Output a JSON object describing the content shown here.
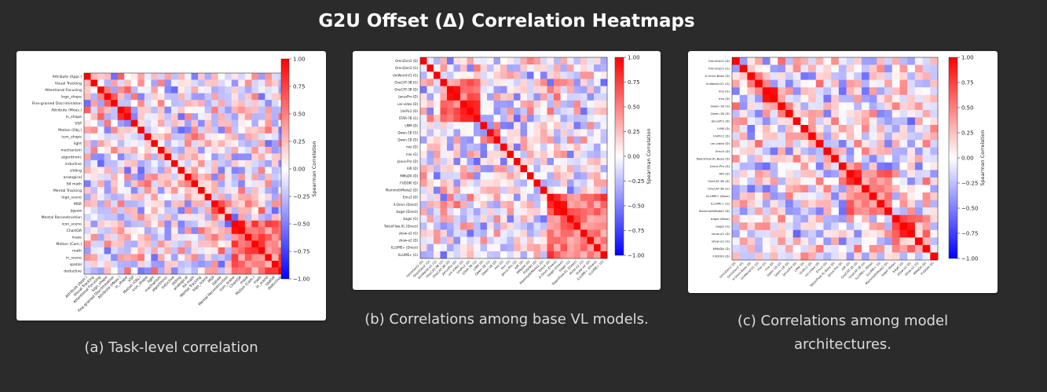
{
  "page": {
    "title": "G2U Offset (Δ) Correlation Heatmaps"
  },
  "colors": {
    "background": "#2b2b2b",
    "card": "#ffffff",
    "title_text": "#ffffff",
    "caption_text": "#dcdcdc",
    "cmap_low": "#0000ff",
    "cmap_mid": "#ffffff",
    "cmap_high": "#ff0000"
  },
  "chart_data": [
    {
      "type": "heatmap",
      "caption": "(a) Task-level correlation",
      "colorbar_label": "Spearman Correlation",
      "colorbar_ticks": [
        "1.00",
        "0.75",
        "0.50",
        "0.25",
        "0.00",
        "−0.25",
        "−0.50",
        "−0.75",
        "−1.00"
      ],
      "vmin": -1,
      "vmax": 1,
      "labels": [
        "Attribute (Appr.)",
        "Visual Tracking",
        "Attentional Focusing",
        "logo_shape",
        "Fine-grained Discrimination",
        "Attribute (Meas.)",
        "in_shape",
        "VSP",
        "Motion (Obj.)",
        "icon_shape",
        "light",
        "mechanism",
        "algorithmic",
        "inductive",
        "sliding",
        "analogical",
        "64 math",
        "Mental Tracking",
        "logo_scene",
        "MSR",
        "jigsaw",
        "Mental Reconstruction",
        "icon_scene",
        "ChartQA",
        "maze",
        "Motion (Cam.)",
        "math",
        "in_scene",
        "spatial",
        "deductive"
      ],
      "seed": 7,
      "blocks": [
        [
          22,
          29,
          0.45
        ],
        [
          14,
          17,
          0.2
        ]
      ]
    },
    {
      "type": "heatmap",
      "caption": "(b) Correlations among base VL models.",
      "colorbar_label": "Spearman Correlation",
      "colorbar_ticks": [
        "1.00",
        "0.75",
        "0.50",
        "0.25",
        "0.00",
        "−0.25",
        "−0.50",
        "−0.75",
        "−1.00"
      ],
      "vmin": -1,
      "vmax": 1,
      "labels": [
        "OmniGen2 (D)",
        "OmniGen2 (G)",
        "UniWorld-V1 (G)",
        "OneCAT-3B (G)",
        "OneCAT-3B (D)",
        "JanusPro (D)",
        "uni-video (D)",
        "UniPic2 (D)",
        "STAR-7B (G)",
        "LMM (D)",
        "Qwen-1B (G)",
        "Qwen-1B (D)",
        "mio (D)",
        "mio (G)",
        "Janus-Pro (D)",
        "AIR (D)",
        "MMaDA (D)",
        "FUDOKI (D)",
        "MammothModa2 (D)",
        "Emu3 (D)",
        "X-Omni (Direct)",
        "bagel (Direct)",
        "bagel (G)",
        "TokenFlow-XL (Direct)",
        "show-o2 (G)",
        "show-o2 (D)",
        "ILLUME+ (Direct)",
        "ILLUME+ (G)"
      ],
      "seed": 19,
      "blocks": [
        [
          3,
          8,
          0.5
        ],
        [
          19,
          27,
          0.35
        ]
      ]
    },
    {
      "type": "heatmap",
      "caption": "(c) Correlations among model architectures.",
      "colorbar_label": "Spearman Correlation",
      "colorbar_ticks": [
        "1.00",
        "0.75",
        "0.50",
        "0.25",
        "0.00",
        "−0.25",
        "−0.50",
        "−0.75",
        "−1.00"
      ],
      "vmin": -1,
      "vmax": 1,
      "labels": [
        "OmniGen2 (D)",
        "OmniGen2 (G)",
        "X-Omni-Base (D)",
        "UniWorld-V1 (G)",
        "mio (G)",
        "mio (D)",
        "Qwen-1B (G)",
        "Qwen-1B (D)",
        "JanusPro (D)",
        "LMM (D)",
        "UniPic2 (D)",
        "uni-video (D)",
        "Emu3 (D)",
        "TokenFlow-XL-Base (D)",
        "Janus-Pro (D)",
        "AIR (D)",
        "OneCAT-3B (D)",
        "OneCAT-3B (G)",
        "ILLUME+ (Base)",
        "ILLUME+ (G)",
        "MammothModa2 (D)",
        "bagel (Base)",
        "bagel (G)",
        "show-o2 (D)",
        "show-o2 (G)",
        "MMaDA (D)",
        "FUDOKI (D)"
      ],
      "seed": 31,
      "blocks": [
        [
          15,
          20,
          0.4
        ],
        [
          21,
          25,
          0.3
        ]
      ]
    }
  ]
}
